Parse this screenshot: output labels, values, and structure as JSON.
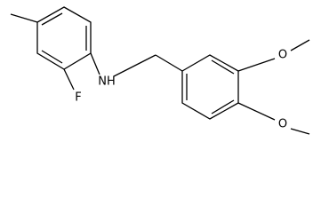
{
  "atoms": [
    {
      "label": "F"
    },
    {
      "label": "NH"
    },
    {
      "label": "O"
    },
    {
      "label": "O"
    }
  ]
}
